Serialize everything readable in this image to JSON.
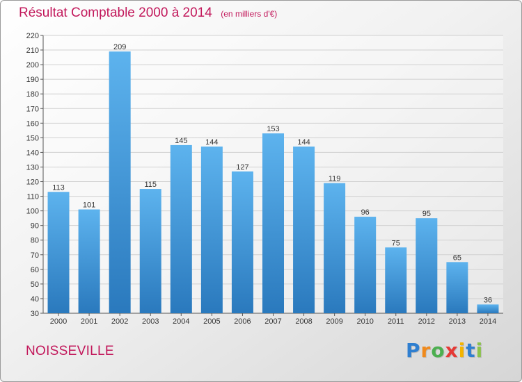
{
  "chart_data": {
    "type": "bar",
    "title": "Résultat Comptable 2000 à 2014",
    "subtitle": "(en milliers d'€)",
    "categories": [
      "2000",
      "2001",
      "2002",
      "2003",
      "2004",
      "2005",
      "2006",
      "2007",
      "2008",
      "2009",
      "2010",
      "2011",
      "2012",
      "2013",
      "2014"
    ],
    "values": [
      113,
      101,
      209,
      115,
      145,
      144,
      127,
      153,
      144,
      119,
      96,
      75,
      95,
      65,
      36
    ],
    "ylim": [
      30,
      220
    ],
    "yticks": [
      30,
      40,
      50,
      60,
      70,
      80,
      90,
      100,
      110,
      120,
      130,
      140,
      150,
      160,
      170,
      180,
      190,
      200,
      210,
      220
    ],
    "xlabel": "",
    "ylabel": "",
    "grid": true,
    "colors": {
      "bar_top": "#5db3ee",
      "bar_bottom": "#2a79bd",
      "grid": "#d0d0d0"
    }
  },
  "location": {
    "name": "NOISSEVILLE"
  },
  "logo": {
    "text": "Proxiti",
    "letters": [
      {
        "ch": "P",
        "color": "#2f7fd0"
      },
      {
        "ch": "r",
        "color": "#f08a1c"
      },
      {
        "ch": "o",
        "color": "#4caf50"
      },
      {
        "ch": "x",
        "color": "#e53935"
      },
      {
        "ch": "i",
        "color": "#f4b400"
      },
      {
        "ch": "t",
        "color": "#2f7fd0"
      },
      {
        "ch": "i",
        "color": "#8bc34a"
      }
    ]
  }
}
